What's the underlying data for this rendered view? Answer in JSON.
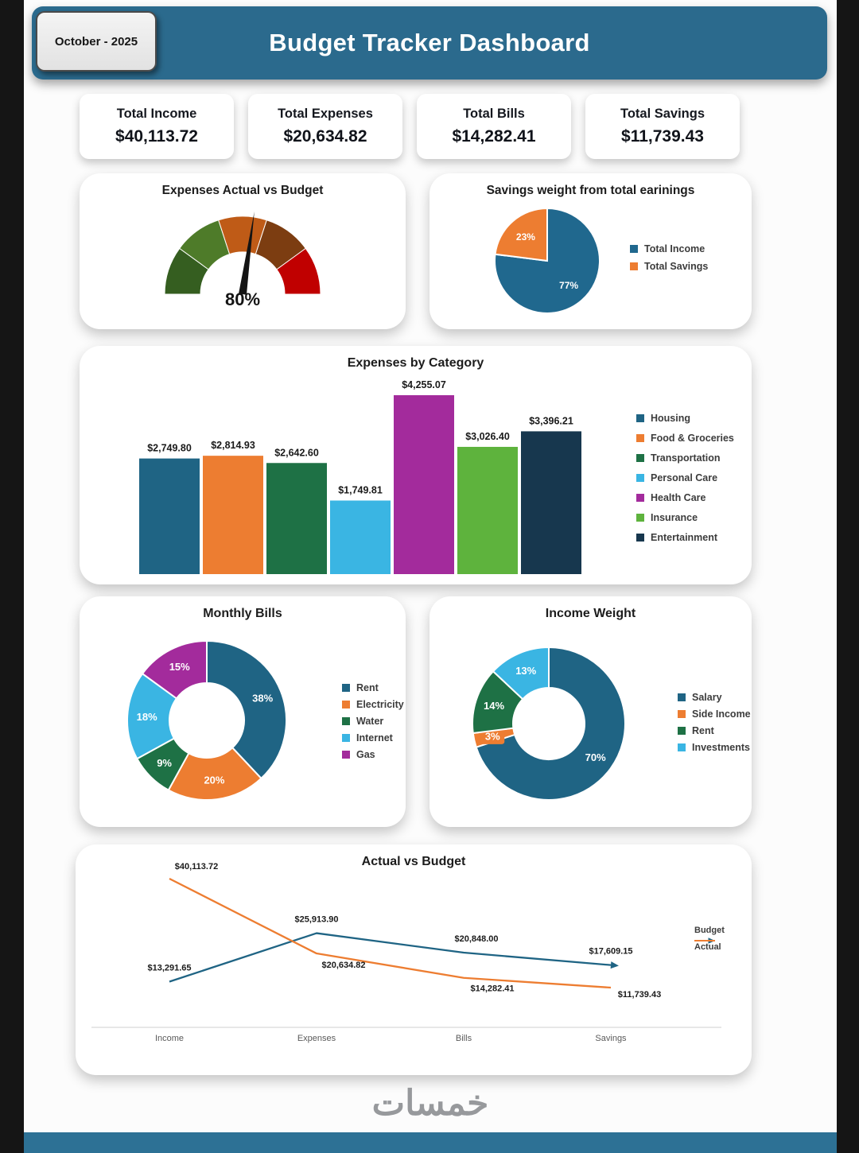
{
  "page": {
    "badge": "October - 2025",
    "title": "Budget Tracker Dashboard",
    "watermark": "خمسات"
  },
  "kpis": [
    {
      "label": "Total Income",
      "value": "$40,113.72"
    },
    {
      "label": "Total Expenses",
      "value": "$20,634.82"
    },
    {
      "label": "Total Bills",
      "value": "$14,282.41"
    },
    {
      "label": "Total Savings",
      "value": "$11,739.43"
    }
  ],
  "colors": {
    "header": "#2b6a8d",
    "bottom_bar": "#2d7195",
    "teal": "#1f6484",
    "orange": "#ed7d31",
    "dark_green": "#1e7145",
    "light_blue": "#3ab5e3",
    "magenta": "#a32b9c",
    "green": "#5eb33d",
    "navy": "#17374e"
  },
  "chart_data": [
    {
      "id": "gauge",
      "type": "gauge",
      "title": "Expenses Actual vs Budget",
      "value_label": "80%",
      "needle_fraction": 0.545,
      "segment_colors": [
        "#355e20",
        "#4e7b29",
        "#bf5b17",
        "#7c3d11",
        "#c00000"
      ]
    },
    {
      "id": "savings-pie",
      "type": "pie",
      "title": "Savings weight from total earinings",
      "legend_position": "right",
      "slices": [
        {
          "name": "Total Income",
          "value": 77,
          "label": "77%",
          "color": "#20688e"
        },
        {
          "name": "Total Savings",
          "value": 23,
          "label": "23%",
          "color": "#ed7d31"
        }
      ]
    },
    {
      "id": "expenses-bar",
      "type": "bar",
      "title": "Expenses by Category",
      "ylim": [
        0,
        4255.07
      ],
      "legend_position": "right",
      "grid": false,
      "bars": [
        {
          "name": "Housing",
          "value": 2749.8,
          "label": "$2,749.80",
          "color": "#1f6484"
        },
        {
          "name": "Food & Groceries",
          "value": 2814.93,
          "label": "$2,814.93",
          "color": "#ed7d31"
        },
        {
          "name": "Transportation",
          "value": 2642.6,
          "label": "$2,642.60",
          "color": "#1e7145"
        },
        {
          "name": "Personal Care",
          "value": 1749.81,
          "label": "$1,749.81",
          "color": "#3ab5e3"
        },
        {
          "name": "Health Care",
          "value": 4255.07,
          "label": "$4,255.07",
          "color": "#a32b9c"
        },
        {
          "name": "Insurance",
          "value": 3026.4,
          "label": "$3,026.40",
          "color": "#5eb33d"
        },
        {
          "name": "Entertainment",
          "value": 3396.21,
          "label": "$3,396.21",
          "color": "#17374e"
        }
      ]
    },
    {
      "id": "bills-donut",
      "type": "pie",
      "title": "Monthly Bills",
      "legend_position": "right",
      "slices": [
        {
          "name": "Rent",
          "value": 38,
          "label": "38%",
          "color": "#1f6484"
        },
        {
          "name": "Electricity",
          "value": 20,
          "label": "20%",
          "color": "#ed7d31"
        },
        {
          "name": "Water",
          "value": 9,
          "label": "9%",
          "color": "#1e7145"
        },
        {
          "name": "Internet",
          "value": 18,
          "label": "18%",
          "color": "#3ab5e3"
        },
        {
          "name": "Gas",
          "value": 15,
          "label": "15%",
          "color": "#a32b9c"
        }
      ]
    },
    {
      "id": "income-donut",
      "type": "pie",
      "title": "Income Weight",
      "legend_position": "right",
      "slices": [
        {
          "name": "Salary",
          "value": 70,
          "label": "70%",
          "color": "#1f6484"
        },
        {
          "name": "Side Income",
          "value": 3,
          "label": "3%",
          "color": "#ed7d31",
          "chip": true
        },
        {
          "name": "Rent",
          "value": 14,
          "label": "14%",
          "color": "#1e7145"
        },
        {
          "name": "Investments",
          "value": 13,
          "label": "13%",
          "color": "#3ab5e3"
        }
      ]
    },
    {
      "id": "actual-vs-budget",
      "type": "line",
      "title": "Actual vs Budget",
      "categories": [
        "Income",
        "Expenses",
        "Bills",
        "Savings"
      ],
      "legend_position": "right",
      "series": [
        {
          "name": "Budget",
          "color": "#1f6484",
          "arrow": true,
          "values": [
            13291.65,
            25913.9,
            20848.0,
            17609.15
          ],
          "labels": [
            "$13,291.65",
            "$25,913.90",
            "$20,848.00",
            "$17,609.15"
          ],
          "label_dx": [
            0,
            0,
            16,
            0
          ],
          "label_dy": [
            -14,
            -14,
            -14,
            -14
          ]
        },
        {
          "name": "Actual",
          "color": "#ed7d31",
          "arrow": false,
          "values": [
            40113.72,
            20634.82,
            14282.41,
            11739.43
          ],
          "labels": [
            "$40,113.72",
            "$20,634.82",
            "$14,282.41",
            "$11,739.43"
          ],
          "label_dx": [
            34,
            34,
            36,
            36
          ],
          "label_dy": [
            -12,
            18,
            17,
            12
          ]
        }
      ]
    }
  ]
}
